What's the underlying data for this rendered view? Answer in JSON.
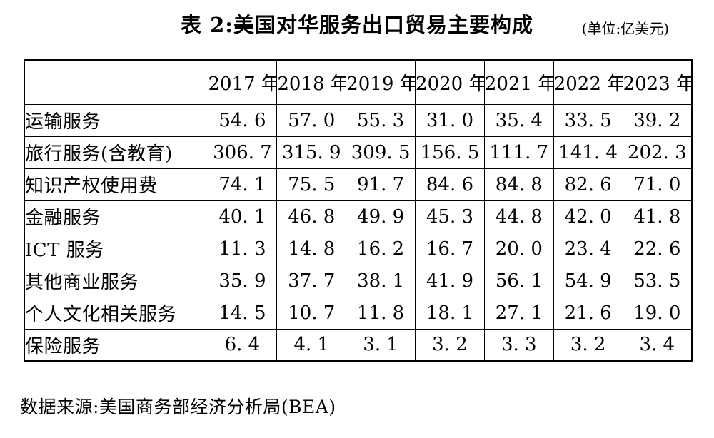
{
  "title": "表 2:美国对华服务出口贸易主要构成",
  "unit_note": "(单位:亿美元)",
  "table": {
    "corner_label": "",
    "columns": [
      "2017 年",
      "2018 年",
      "2019 年",
      "2020 年",
      "2021 年",
      "2022 年",
      "2023 年"
    ],
    "rows": [
      {
        "label": "运输服务",
        "values": [
          "54. 6",
          "57. 0",
          "55. 3",
          "31. 0",
          "35. 4",
          "33. 5",
          "39. 2"
        ]
      },
      {
        "label": "旅行服务(含教育)",
        "values": [
          "306. 7",
          "315. 9",
          "309. 5",
          "156. 5",
          "111. 7",
          "141. 4",
          "202. 3"
        ]
      },
      {
        "label": "知识产权使用费",
        "values": [
          "74. 1",
          "75. 5",
          "91. 7",
          "84. 6",
          "84. 8",
          "82. 6",
          "71. 0"
        ]
      },
      {
        "label": "金融服务",
        "values": [
          "40. 1",
          "46. 8",
          "49. 9",
          "45. 3",
          "44. 8",
          "42. 0",
          "41. 8"
        ]
      },
      {
        "label": "ICT 服务",
        "values": [
          "11. 3",
          "14. 8",
          "16. 2",
          "16. 7",
          "20. 0",
          "23. 4",
          "22. 6"
        ]
      },
      {
        "label": "其他商业服务",
        "values": [
          "35. 9",
          "37. 7",
          "38. 1",
          "41. 9",
          "56. 1",
          "54. 9",
          "53. 5"
        ]
      },
      {
        "label": "个人文化相关服务",
        "values": [
          "14. 5",
          "10. 7",
          "11. 8",
          "18. 1",
          "27. 1",
          "21. 6",
          "19. 0"
        ]
      },
      {
        "label": "保险服务",
        "values": [
          "6. 4",
          "4. 1",
          "3. 1",
          "3. 2",
          "3. 3",
          "3. 2",
          "3. 4"
        ]
      }
    ]
  },
  "source_note": "数据来源:美国商务部经济分析局(BEA)",
  "colors": {
    "background": "#ffffff",
    "text": "#000000",
    "border": "#000000"
  }
}
